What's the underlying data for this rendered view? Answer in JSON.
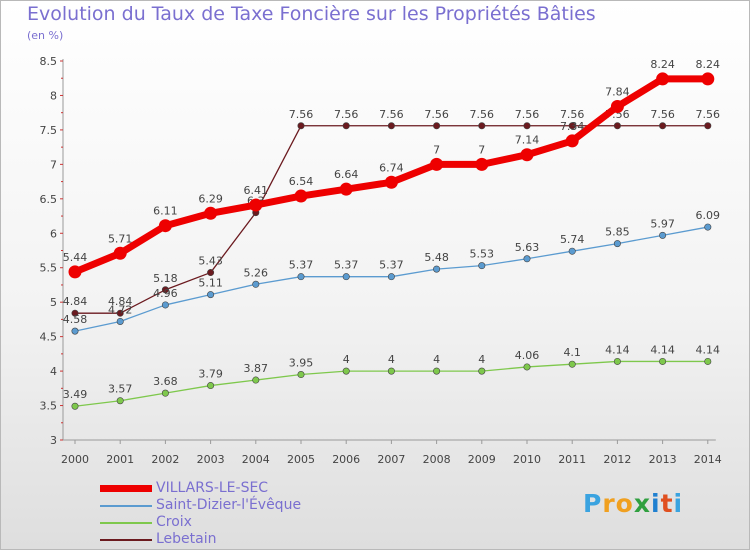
{
  "chart_data": {
    "type": "line",
    "title": "Evolution du Taux de Taxe Foncière sur les Propriétés Bâties",
    "ylabel": "(en %)",
    "xlabel": "",
    "categories": [
      "2000",
      "2001",
      "2002",
      "2003",
      "2004",
      "2005",
      "2006",
      "2007",
      "2008",
      "2009",
      "2010",
      "2011",
      "2012",
      "2013",
      "2014"
    ],
    "ylim": [
      3,
      8.5
    ],
    "yticks": [
      "3",
      "3.5",
      "4",
      "4.5",
      "5",
      "5.5",
      "6",
      "6.5",
      "7",
      "7.5",
      "8",
      "8.5"
    ],
    "grid": false,
    "legend_position": "bottom-left",
    "series": [
      {
        "name": "Lebetain",
        "color": "#6b1a1f",
        "values": [
          4.84,
          4.84,
          5.18,
          5.43,
          6.3,
          7.56,
          7.56,
          7.56,
          7.56,
          7.56,
          7.56,
          7.56,
          7.56,
          7.56,
          7.56
        ],
        "labels": [
          "4.84",
          "4.84",
          "5.18",
          "5.43",
          "6.3",
          "7.56",
          "7.56",
          "7.56",
          "7.56",
          "7.56",
          "7.56",
          "7.56",
          "7.56",
          "7.56",
          "7.56"
        ]
      },
      {
        "name": "Croix",
        "color": "#7ec84c",
        "values": [
          3.49,
          3.57,
          3.68,
          3.79,
          3.87,
          3.95,
          4,
          4,
          4,
          4,
          4.06,
          4.1,
          4.14,
          4.14,
          4.14
        ],
        "labels": [
          "3.49",
          "3.57",
          "3.68",
          "3.79",
          "3.87",
          "3.95",
          "4",
          "4",
          "4",
          "4",
          "4.06",
          "4.1",
          "4.14",
          "4.14",
          "4.14"
        ]
      },
      {
        "name": "Saint-Dizier-l'Évêque",
        "color": "#5b9bd0",
        "values": [
          4.58,
          4.72,
          4.96,
          5.11,
          5.26,
          5.37,
          5.37,
          5.37,
          5.48,
          5.53,
          5.63,
          5.74,
          5.85,
          5.97,
          6.09
        ],
        "labels": [
          "4.58",
          "4.72",
          "4.96",
          "5.11",
          "5.26",
          "5.37",
          "5.37",
          "5.37",
          "5.48",
          "5.53",
          "5.63",
          "5.74",
          "5.85",
          "5.97",
          "6.09"
        ]
      },
      {
        "name": "VILLARS-LE-SEC",
        "color": "#ee0000",
        "values": [
          5.44,
          5.71,
          6.11,
          6.29,
          6.41,
          6.54,
          6.64,
          6.74,
          7,
          7,
          7.14,
          7.34,
          7.84,
          8.24,
          8.24
        ],
        "labels": [
          "5.44",
          "5.71",
          "6.11",
          "6.29",
          "6.41",
          "6.54",
          "6.64",
          "6.74",
          "7",
          "7",
          "7.14",
          "7.34",
          "7.84",
          "8.24",
          "8.24"
        ]
      }
    ]
  },
  "legend": [
    {
      "label": "VILLARS-LE-SEC",
      "color": "#ee0000"
    },
    {
      "label": "Saint-Dizier-l'Évêque",
      "color": "#5b9bd0"
    },
    {
      "label": "Croix",
      "color": "#7ec84c"
    },
    {
      "label": "Lebetain",
      "color": "#6b1a1f"
    }
  ],
  "logo": {
    "letters": [
      "P",
      "r",
      "o",
      "x",
      "i",
      "t",
      "i"
    ],
    "colors": [
      "#3aa3e0",
      "#f0a020",
      "#f0a020",
      "#30a040",
      "#2080d0",
      "#e05020",
      "#3aa3e0"
    ]
  }
}
